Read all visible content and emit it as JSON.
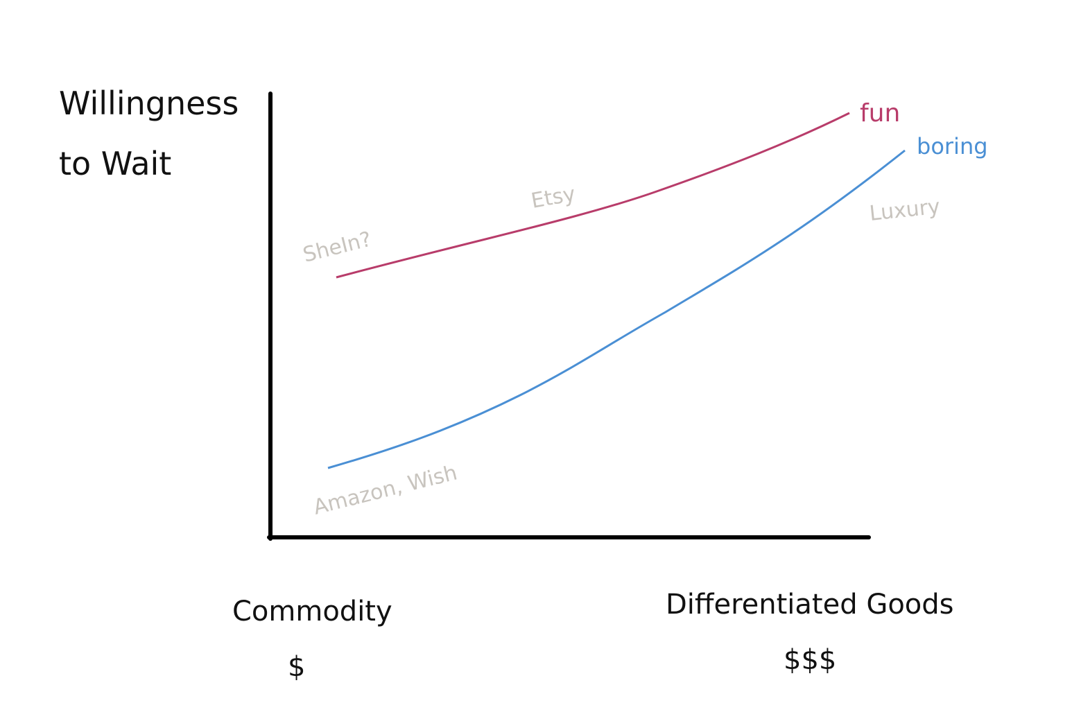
{
  "y_axis": {
    "label_lines": [
      "Willingness",
      "to Wait"
    ]
  },
  "x_axis": {
    "left": {
      "label": "Commodity",
      "price": "$"
    },
    "right": {
      "label": "Differentiated Goods",
      "price": "$$$"
    }
  },
  "curves": [
    {
      "name": "fun"
    },
    {
      "name": "boring"
    }
  ],
  "annotations": [
    "SheIn?",
    "Etsy",
    "Amazon, Wish",
    "Luxury"
  ]
}
